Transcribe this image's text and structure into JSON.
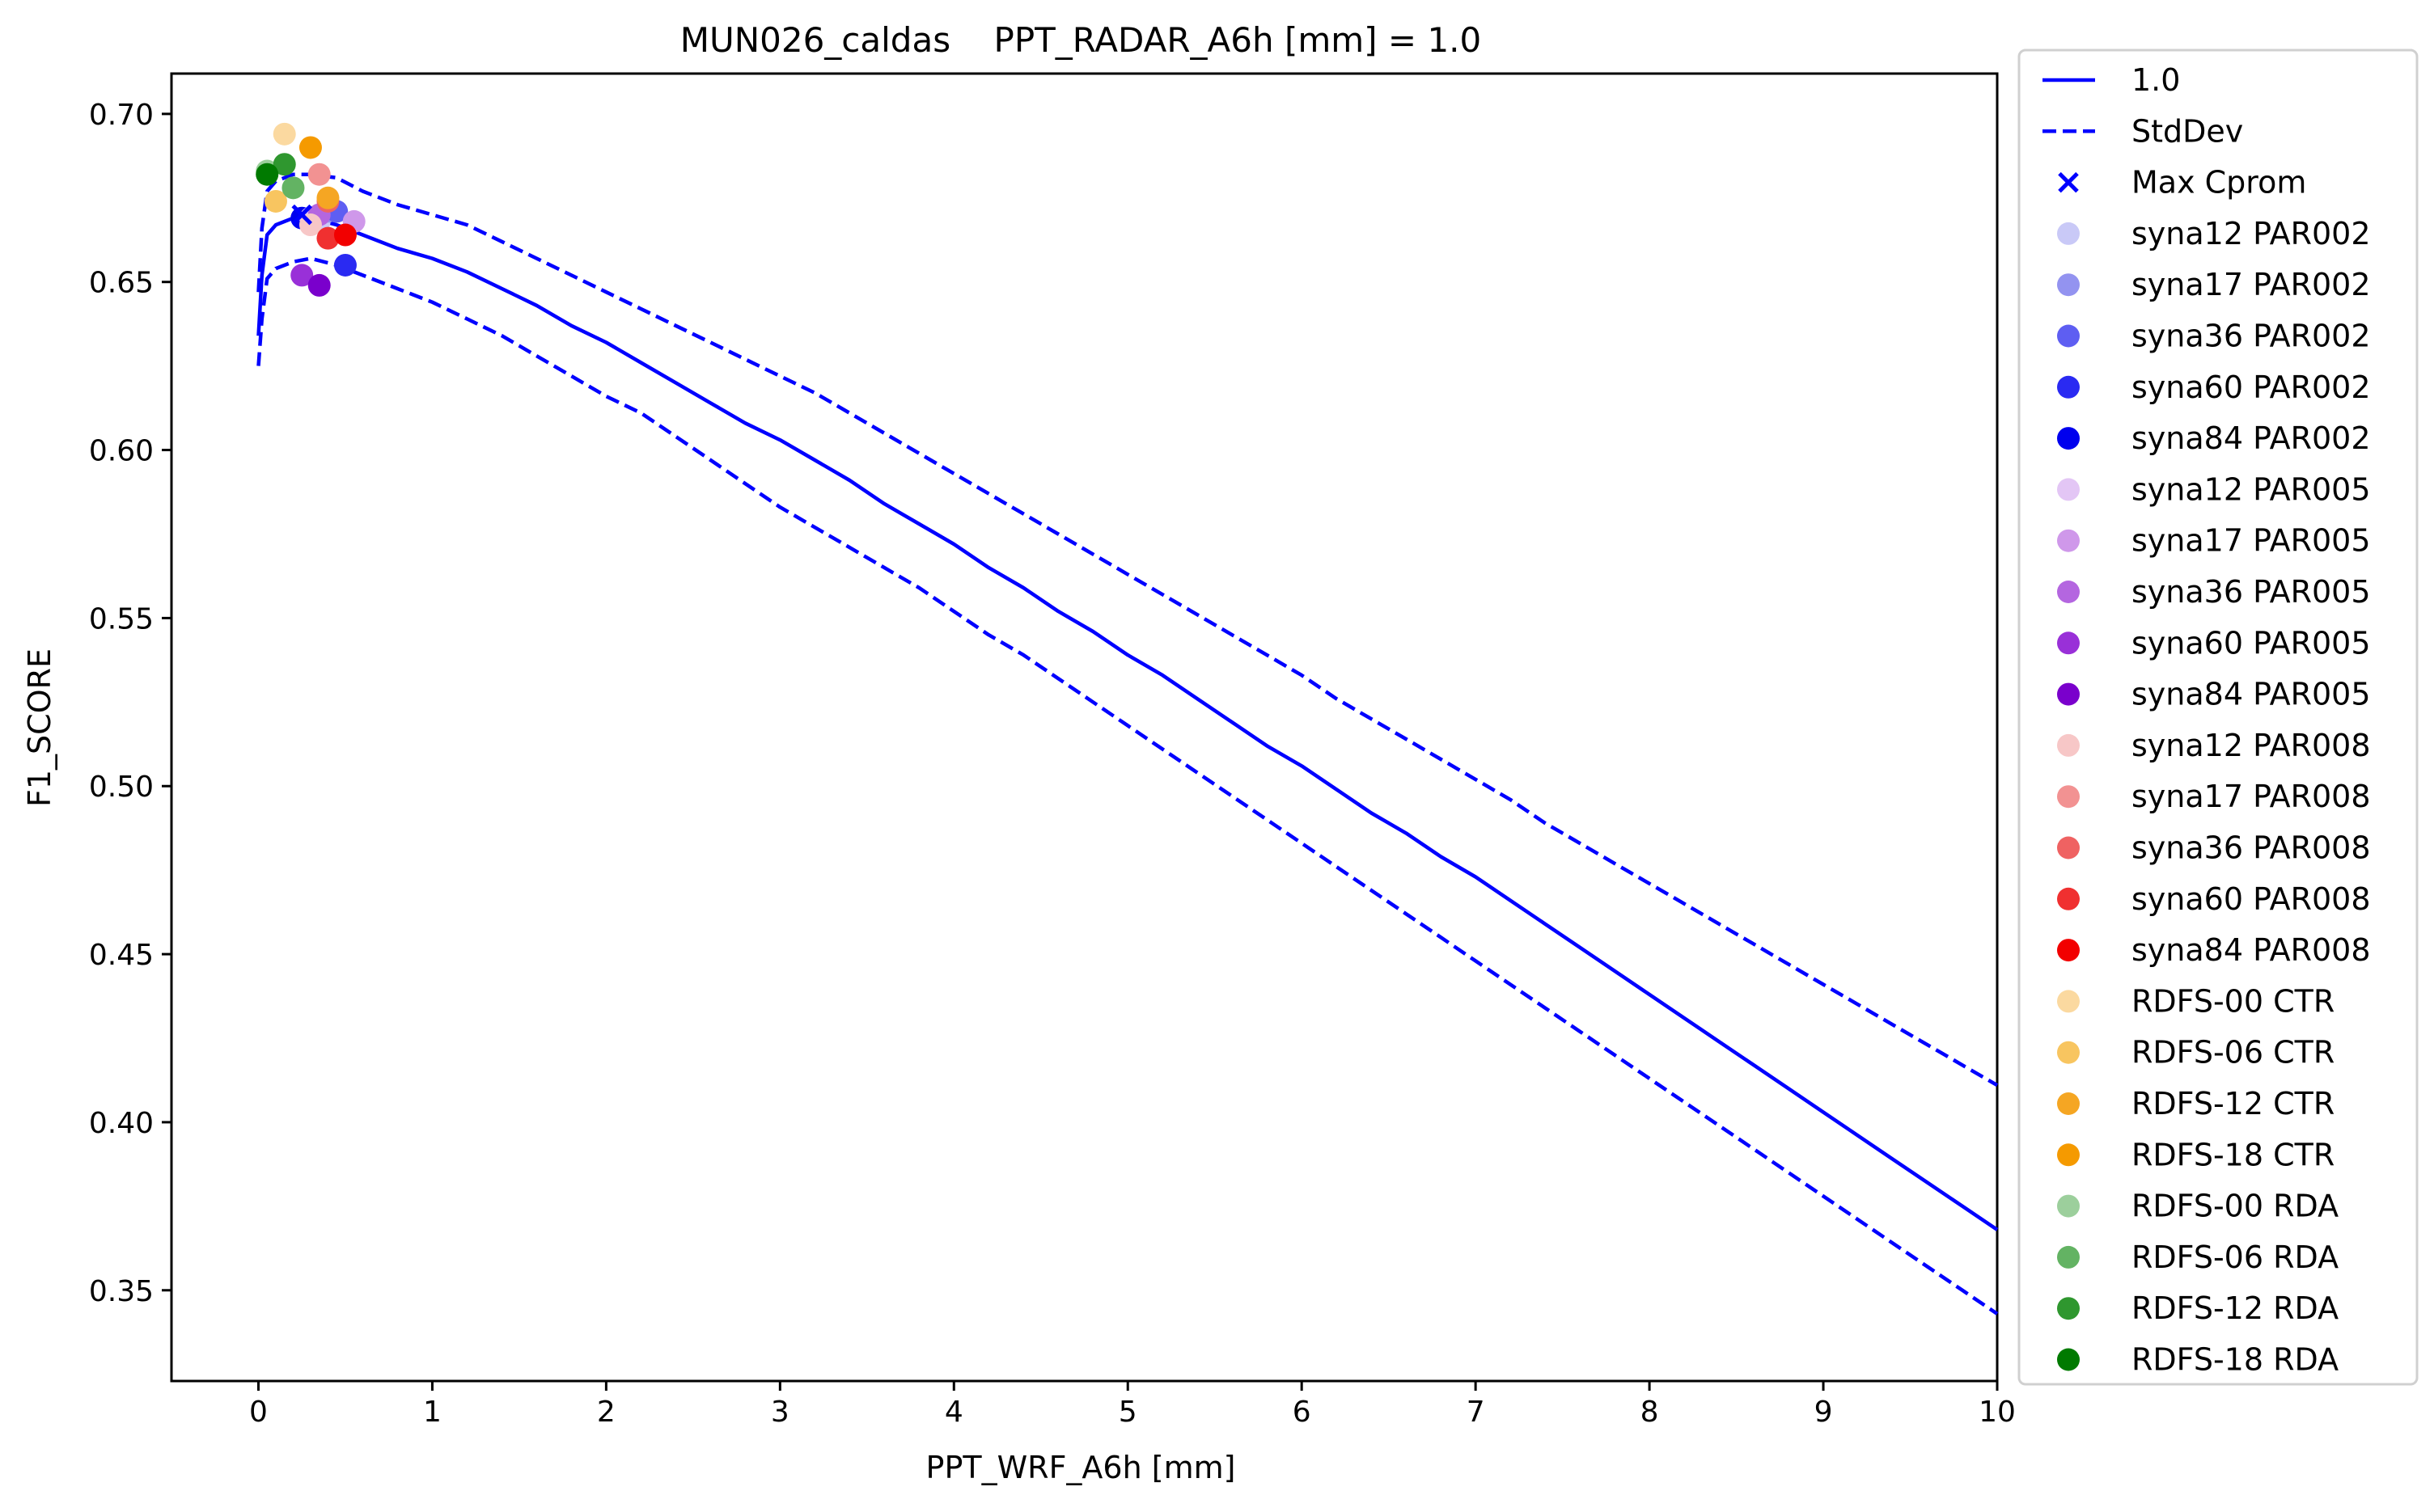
{
  "chart_data": {
    "type": "line",
    "title": "MUN026_caldas    PPT_RADAR_A6h [mm] = 1.0",
    "xlabel": "PPT_WRF_A6h [mm]",
    "ylabel": "F1_SCORE",
    "xlim": [
      -0.5,
      10
    ],
    "ylim": [
      0.323,
      0.712
    ],
    "x_ticks": [
      0,
      1,
      2,
      3,
      4,
      5,
      6,
      7,
      8,
      9,
      10
    ],
    "y_ticks": [
      0.35,
      0.4,
      0.45,
      0.5,
      0.55,
      0.6,
      0.65,
      0.7
    ],
    "y_tick_labels": [
      "0.35",
      "0.40",
      "0.45",
      "0.50",
      "0.55",
      "0.60",
      "0.65",
      "0.70"
    ],
    "grid": false,
    "legend_position": "outside-right",
    "series": [
      {
        "name": "1.0",
        "style": "solid",
        "color": "#0000ff",
        "points": [
          [
            0.0,
            0.634
          ],
          [
            0.02,
            0.652
          ],
          [
            0.05,
            0.664
          ],
          [
            0.1,
            0.667
          ],
          [
            0.2,
            0.669
          ],
          [
            0.3,
            0.669
          ],
          [
            0.45,
            0.667
          ],
          [
            0.6,
            0.664
          ],
          [
            0.8,
            0.66
          ],
          [
            1.0,
            0.657
          ],
          [
            1.2,
            0.653
          ],
          [
            1.4,
            0.648
          ],
          [
            1.6,
            0.643
          ],
          [
            1.8,
            0.637
          ],
          [
            2.0,
            0.632
          ],
          [
            2.2,
            0.626
          ],
          [
            2.4,
            0.62
          ],
          [
            2.6,
            0.614
          ],
          [
            2.8,
            0.608
          ],
          [
            3.0,
            0.603
          ],
          [
            3.2,
            0.597
          ],
          [
            3.4,
            0.591
          ],
          [
            3.6,
            0.584
          ],
          [
            3.8,
            0.578
          ],
          [
            4.0,
            0.572
          ],
          [
            4.2,
            0.565
          ],
          [
            4.4,
            0.559
          ],
          [
            4.6,
            0.552
          ],
          [
            4.8,
            0.546
          ],
          [
            5.0,
            0.539
          ],
          [
            5.2,
            0.533
          ],
          [
            5.4,
            0.526
          ],
          [
            5.6,
            0.519
          ],
          [
            5.8,
            0.512
          ],
          [
            6.0,
            0.506
          ],
          [
            6.2,
            0.499
          ],
          [
            6.4,
            0.492
          ],
          [
            6.6,
            0.486
          ],
          [
            6.8,
            0.479
          ],
          [
            7.0,
            0.473
          ],
          [
            7.2,
            0.466
          ],
          [
            7.4,
            0.459
          ],
          [
            7.6,
            0.452
          ],
          [
            7.8,
            0.445
          ],
          [
            8.0,
            0.438
          ],
          [
            8.2,
            0.431
          ],
          [
            8.4,
            0.424
          ],
          [
            8.6,
            0.417
          ],
          [
            8.8,
            0.41
          ],
          [
            9.0,
            0.403
          ],
          [
            9.2,
            0.396
          ],
          [
            9.4,
            0.389
          ],
          [
            9.6,
            0.382
          ],
          [
            9.8,
            0.375
          ],
          [
            10.0,
            0.368
          ]
        ]
      },
      {
        "name": "StdDev",
        "style": "dashed",
        "color": "#0000ff",
        "points": [
          [
            0.0,
            0.647
          ],
          [
            0.02,
            0.666
          ],
          [
            0.05,
            0.677
          ],
          [
            0.1,
            0.68
          ],
          [
            0.2,
            0.682
          ],
          [
            0.3,
            0.682
          ],
          [
            0.45,
            0.681
          ],
          [
            0.6,
            0.677
          ],
          [
            0.8,
            0.673
          ],
          [
            1.0,
            0.67
          ],
          [
            1.2,
            0.667
          ],
          [
            1.4,
            0.662
          ],
          [
            1.6,
            0.657
          ],
          [
            1.8,
            0.652
          ],
          [
            2.0,
            0.647
          ],
          [
            2.2,
            0.642
          ],
          [
            2.4,
            0.637
          ],
          [
            2.6,
            0.632
          ],
          [
            2.8,
            0.627
          ],
          [
            3.0,
            0.622
          ],
          [
            3.2,
            0.617
          ],
          [
            3.4,
            0.611
          ],
          [
            3.6,
            0.605
          ],
          [
            3.8,
            0.599
          ],
          [
            4.0,
            0.593
          ],
          [
            4.2,
            0.587
          ],
          [
            4.4,
            0.581
          ],
          [
            4.6,
            0.575
          ],
          [
            4.8,
            0.569
          ],
          [
            5.0,
            0.563
          ],
          [
            5.2,
            0.557
          ],
          [
            5.4,
            0.551
          ],
          [
            5.6,
            0.545
          ],
          [
            5.8,
            0.539
          ],
          [
            6.0,
            0.533
          ],
          [
            6.2,
            0.526
          ],
          [
            6.4,
            0.52
          ],
          [
            6.6,
            0.514
          ],
          [
            6.8,
            0.508
          ],
          [
            7.0,
            0.502
          ],
          [
            7.2,
            0.496
          ],
          [
            7.4,
            0.489
          ],
          [
            7.6,
            0.483
          ],
          [
            7.8,
            0.477
          ],
          [
            8.0,
            0.471
          ],
          [
            8.2,
            0.465
          ],
          [
            8.4,
            0.459
          ],
          [
            8.6,
            0.453
          ],
          [
            8.8,
            0.447
          ],
          [
            9.0,
            0.441
          ],
          [
            9.2,
            0.435
          ],
          [
            9.4,
            0.429
          ],
          [
            9.6,
            0.423
          ],
          [
            9.8,
            0.417
          ],
          [
            10.0,
            0.411
          ]
        ]
      },
      {
        "name": "",
        "style": "dashed",
        "color": "#0000ff",
        "points": [
          [
            0.0,
            0.625
          ],
          [
            0.02,
            0.639
          ],
          [
            0.05,
            0.651
          ],
          [
            0.1,
            0.654
          ],
          [
            0.2,
            0.656
          ],
          [
            0.3,
            0.657
          ],
          [
            0.45,
            0.655
          ],
          [
            0.6,
            0.652
          ],
          [
            0.8,
            0.648
          ],
          [
            1.0,
            0.644
          ],
          [
            1.2,
            0.639
          ],
          [
            1.4,
            0.634
          ],
          [
            1.6,
            0.628
          ],
          [
            1.8,
            0.622
          ],
          [
            2.0,
            0.616
          ],
          [
            2.2,
            0.611
          ],
          [
            2.4,
            0.604
          ],
          [
            2.6,
            0.597
          ],
          [
            2.8,
            0.59
          ],
          [
            3.0,
            0.583
          ],
          [
            3.2,
            0.577
          ],
          [
            3.4,
            0.571
          ],
          [
            3.6,
            0.565
          ],
          [
            3.8,
            0.559
          ],
          [
            4.0,
            0.552
          ],
          [
            4.2,
            0.545
          ],
          [
            4.4,
            0.539
          ],
          [
            4.6,
            0.532
          ],
          [
            4.8,
            0.525
          ],
          [
            5.0,
            0.518
          ],
          [
            5.2,
            0.511
          ],
          [
            5.4,
            0.504
          ],
          [
            5.6,
            0.497
          ],
          [
            5.8,
            0.49
          ],
          [
            6.0,
            0.483
          ],
          [
            6.2,
            0.476
          ],
          [
            6.4,
            0.469
          ],
          [
            6.6,
            0.462
          ],
          [
            6.8,
            0.455
          ],
          [
            7.0,
            0.448
          ],
          [
            7.2,
            0.441
          ],
          [
            7.4,
            0.434
          ],
          [
            7.6,
            0.427
          ],
          [
            7.8,
            0.42
          ],
          [
            8.0,
            0.413
          ],
          [
            8.2,
            0.406
          ],
          [
            8.4,
            0.399
          ],
          [
            8.6,
            0.392
          ],
          [
            8.8,
            0.385
          ],
          [
            9.0,
            0.378
          ],
          [
            9.2,
            0.371
          ],
          [
            9.4,
            0.364
          ],
          [
            9.6,
            0.357
          ],
          [
            9.8,
            0.35
          ],
          [
            10.0,
            0.343
          ]
        ]
      }
    ],
    "max_marker": {
      "name": "Max Cprom",
      "x": 0.25,
      "y": 0.67,
      "color": "#0000ff",
      "marker": "x"
    },
    "points": [
      {
        "name": "syna12 PAR002",
        "x": 0.35,
        "y": 0.668,
        "color": "#c9c9f7"
      },
      {
        "name": "syna17 PAR002",
        "x": 0.4,
        "y": 0.671,
        "color": "#9393f0"
      },
      {
        "name": "syna36 PAR002",
        "x": 0.45,
        "y": 0.671,
        "color": "#5e5ef2"
      },
      {
        "name": "syna60 PAR002",
        "x": 0.5,
        "y": 0.655,
        "color": "#2a2af2"
      },
      {
        "name": "syna84 PAR002",
        "x": 0.25,
        "y": 0.669,
        "color": "#0000ee"
      },
      {
        "name": "syna12 PAR005",
        "x": 0.3,
        "y": 0.669,
        "color": "#e3c6f5"
      },
      {
        "name": "syna17 PAR005",
        "x": 0.55,
        "y": 0.668,
        "color": "#cf98ea"
      },
      {
        "name": "syna36 PAR005",
        "x": 0.35,
        "y": 0.67,
        "color": "#b466e0"
      },
      {
        "name": "syna60 PAR005",
        "x": 0.25,
        "y": 0.652,
        "color": "#9930d8"
      },
      {
        "name": "syna84 PAR005",
        "x": 0.35,
        "y": 0.649,
        "color": "#7a00cc"
      },
      {
        "name": "syna12 PAR008",
        "x": 0.3,
        "y": 0.667,
        "color": "#f7c7c7"
      },
      {
        "name": "syna17 PAR008",
        "x": 0.35,
        "y": 0.682,
        "color": "#f29292"
      },
      {
        "name": "syna36 PAR008",
        "x": 0.4,
        "y": 0.674,
        "color": "#ef6262"
      },
      {
        "name": "syna60 PAR008",
        "x": 0.4,
        "y": 0.663,
        "color": "#f03030"
      },
      {
        "name": "syna84 PAR008",
        "x": 0.5,
        "y": 0.664,
        "color": "#f20000"
      },
      {
        "name": "RDFS-00 CTR",
        "x": 0.15,
        "y": 0.694,
        "color": "#fbd9a0"
      },
      {
        "name": "RDFS-06 CTR",
        "x": 0.1,
        "y": 0.674,
        "color": "#f8c560"
      },
      {
        "name": "RDFS-12 CTR",
        "x": 0.4,
        "y": 0.675,
        "color": "#f5a623"
      },
      {
        "name": "RDFS-18 CTR",
        "x": 0.3,
        "y": 0.69,
        "color": "#f59a00"
      },
      {
        "name": "RDFS-00 RDA",
        "x": 0.05,
        "y": 0.683,
        "color": "#9ccf9c"
      },
      {
        "name": "RDFS-06 RDA",
        "x": 0.2,
        "y": 0.678,
        "color": "#63b363"
      },
      {
        "name": "RDFS-12 RDA",
        "x": 0.15,
        "y": 0.685,
        "color": "#2f972f"
      },
      {
        "name": "RDFS-18 RDA",
        "x": 0.05,
        "y": 0.682,
        "color": "#007a00"
      }
    ],
    "legend": [
      {
        "label": "1.0",
        "kind": "line",
        "color": "#0000ff"
      },
      {
        "label": "StdDev",
        "kind": "dashed",
        "color": "#0000ff"
      },
      {
        "label": "Max Cprom",
        "kind": "x",
        "color": "#0000ff"
      },
      {
        "label": "syna12 PAR002",
        "kind": "dot",
        "color": "#c9c9f7"
      },
      {
        "label": "syna17 PAR002",
        "kind": "dot",
        "color": "#9393f0"
      },
      {
        "label": "syna36 PAR002",
        "kind": "dot",
        "color": "#5e5ef2"
      },
      {
        "label": "syna60 PAR002",
        "kind": "dot",
        "color": "#2a2af2"
      },
      {
        "label": "syna84 PAR002",
        "kind": "dot",
        "color": "#0000ee"
      },
      {
        "label": "syna12 PAR005",
        "kind": "dot",
        "color": "#e3c6f5"
      },
      {
        "label": "syna17 PAR005",
        "kind": "dot",
        "color": "#cf98ea"
      },
      {
        "label": "syna36 PAR005",
        "kind": "dot",
        "color": "#b466e0"
      },
      {
        "label": "syna60 PAR005",
        "kind": "dot",
        "color": "#9930d8"
      },
      {
        "label": "syna84 PAR005",
        "kind": "dot",
        "color": "#7a00cc"
      },
      {
        "label": "syna12 PAR008",
        "kind": "dot",
        "color": "#f7c7c7"
      },
      {
        "label": "syna17 PAR008",
        "kind": "dot",
        "color": "#f29292"
      },
      {
        "label": "syna36 PAR008",
        "kind": "dot",
        "color": "#ef6262"
      },
      {
        "label": "syna60 PAR008",
        "kind": "dot",
        "color": "#f03030"
      },
      {
        "label": "syna84 PAR008",
        "kind": "dot",
        "color": "#f20000"
      },
      {
        "label": " RDFS-00 CTR",
        "kind": "dot",
        "color": "#fbd9a0"
      },
      {
        "label": " RDFS-06 CTR",
        "kind": "dot",
        "color": "#f8c560"
      },
      {
        "label": " RDFS-12 CTR",
        "kind": "dot",
        "color": "#f5a623"
      },
      {
        "label": " RDFS-18 CTR",
        "kind": "dot",
        "color": "#f59a00"
      },
      {
        "label": " RDFS-00 RDA",
        "kind": "dot",
        "color": "#9ccf9c"
      },
      {
        "label": " RDFS-06 RDA",
        "kind": "dot",
        "color": "#63b363"
      },
      {
        "label": " RDFS-12 RDA",
        "kind": "dot",
        "color": "#2f972f"
      },
      {
        "label": " RDFS-18 RDA",
        "kind": "dot",
        "color": "#007a00"
      }
    ]
  }
}
